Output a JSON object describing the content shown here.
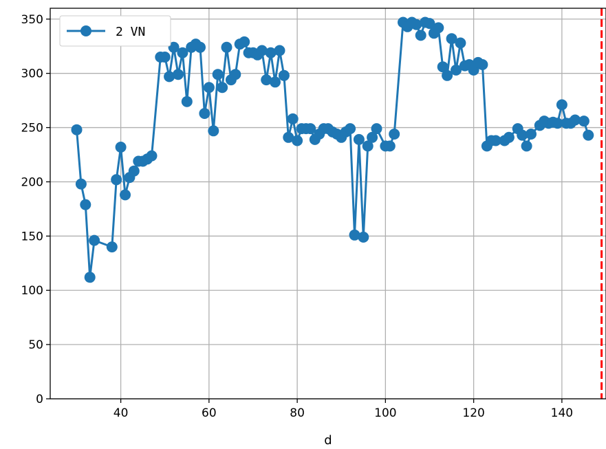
{
  "chart_data": {
    "type": "line",
    "xlabel": "d",
    "ylabel": "",
    "title": "",
    "xlim": [
      24,
      150
    ],
    "ylim": [
      0,
      360
    ],
    "xticks": [
      40,
      60,
      80,
      100,
      120,
      140
    ],
    "yticks": [
      0,
      50,
      100,
      150,
      200,
      250,
      300,
      350
    ],
    "grid": true,
    "legend_position": "top-left",
    "series": [
      {
        "name": "2 VN",
        "color": "#1f77b4",
        "marker": "circle",
        "points": [
          [
            30,
            248
          ],
          [
            31,
            198
          ],
          [
            32,
            179
          ],
          [
            33,
            112
          ],
          [
            34,
            146
          ],
          [
            38,
            140
          ],
          [
            39,
            202
          ],
          [
            40,
            232
          ],
          [
            41,
            188
          ],
          [
            42,
            204
          ],
          [
            43,
            210
          ],
          [
            44,
            219
          ],
          [
            45,
            219
          ],
          [
            46,
            221
          ],
          [
            47,
            224
          ],
          [
            49,
            315
          ],
          [
            50,
            315
          ],
          [
            51,
            297
          ],
          [
            52,
            324
          ],
          [
            53,
            299
          ],
          [
            54,
            319
          ],
          [
            55,
            274
          ],
          [
            56,
            324
          ],
          [
            57,
            327
          ],
          [
            58,
            324
          ],
          [
            59,
            263
          ],
          [
            60,
            287
          ],
          [
            61,
            247
          ],
          [
            62,
            299
          ],
          [
            63,
            287
          ],
          [
            64,
            324
          ],
          [
            65,
            294
          ],
          [
            66,
            299
          ],
          [
            67,
            327
          ],
          [
            68,
            329
          ],
          [
            69,
            319
          ],
          [
            70,
            319
          ],
          [
            71,
            317
          ],
          [
            72,
            321
          ],
          [
            73,
            294
          ],
          [
            74,
            319
          ],
          [
            75,
            292
          ],
          [
            76,
            321
          ],
          [
            77,
            298
          ],
          [
            78,
            241
          ],
          [
            79,
            258
          ],
          [
            80,
            238
          ],
          [
            81,
            249
          ],
          [
            82,
            249
          ],
          [
            83,
            249
          ],
          [
            84,
            239
          ],
          [
            85,
            244
          ],
          [
            86,
            249
          ],
          [
            87,
            249
          ],
          [
            88,
            246
          ],
          [
            89,
            244
          ],
          [
            90,
            241
          ],
          [
            91,
            246
          ],
          [
            92,
            249
          ],
          [
            93,
            151
          ],
          [
            94,
            239
          ],
          [
            95,
            149
          ],
          [
            96,
            233
          ],
          [
            97,
            241
          ],
          [
            98,
            249
          ],
          [
            100,
            233
          ],
          [
            101,
            233
          ],
          [
            102,
            244
          ],
          [
            104,
            347
          ],
          [
            105,
            343
          ],
          [
            106,
            347
          ],
          [
            107,
            345
          ],
          [
            108,
            335
          ],
          [
            109,
            347
          ],
          [
            110,
            346
          ],
          [
            111,
            337
          ],
          [
            112,
            342
          ],
          [
            113,
            306
          ],
          [
            114,
            298
          ],
          [
            115,
            332
          ],
          [
            116,
            303
          ],
          [
            117,
            328
          ],
          [
            118,
            307
          ],
          [
            119,
            308
          ],
          [
            120,
            303
          ],
          [
            121,
            310
          ],
          [
            122,
            308
          ],
          [
            123,
            233
          ],
          [
            124,
            238
          ],
          [
            125,
            238
          ],
          [
            127,
            238
          ],
          [
            128,
            241
          ],
          [
            130,
            249
          ],
          [
            131,
            243
          ],
          [
            132,
            233
          ],
          [
            133,
            244
          ],
          [
            135,
            252
          ],
          [
            136,
            256
          ],
          [
            137,
            254
          ],
          [
            138,
            255
          ],
          [
            139,
            254
          ],
          [
            140,
            271
          ],
          [
            141,
            254
          ],
          [
            142,
            254
          ],
          [
            143,
            257
          ],
          [
            145,
            256
          ],
          [
            146,
            243
          ]
        ]
      }
    ],
    "reference_lines": [
      {
        "orientation": "vertical",
        "x": 149,
        "color": "#ff0000",
        "style": "dashed"
      }
    ]
  }
}
